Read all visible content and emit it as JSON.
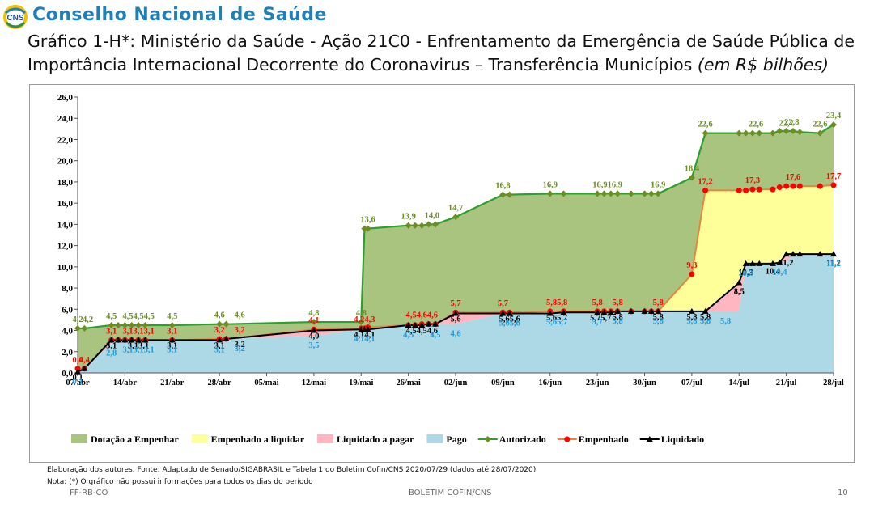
{
  "header": {
    "org_name": "Conselho Nacional de Saúde",
    "logo_text": "CNS",
    "title_main": "Gráfico 1-H*: Ministério da Saúde - Ação 21C0 - Enfrentamento da Emergência de Saúde Pública de Importância Internacional Decorrente do Coronavirus – Transferência Municípios",
    "title_unit": "(em R$ bilhões)"
  },
  "footer": {
    "source": "Elaboração dos autores. Fonte: Adaptado de Senado/SIGABRASIL e Tabela 1 do Boletim Cofin/CNS 2020/07/29  (dados até 28/07/2020)",
    "note": "Nota: (*) O gráfico não possui informações para todos os dias do período",
    "left": "FF-RB-CO",
    "center": "BOLETIM COFIN/CNS",
    "page": "10"
  },
  "chart_data": {
    "type": "area",
    "ylim": [
      0,
      26
    ],
    "yticks": [
      "0,0",
      "2,0",
      "4,0",
      "6,0",
      "8,0",
      "10,0",
      "12,0",
      "14,0",
      "16,0",
      "18,0",
      "20,0",
      "22,0",
      "24,0",
      "26,0"
    ],
    "xlim": [
      0,
      112
    ],
    "xticks": [
      {
        "label": "07/abr",
        "x": 0
      },
      {
        "label": "14/abr",
        "x": 7
      },
      {
        "label": "21/abr",
        "x": 14
      },
      {
        "label": "28/abr",
        "x": 21
      },
      {
        "label": "05/mai",
        "x": 28
      },
      {
        "label": "12/mai",
        "x": 35
      },
      {
        "label": "19/mai",
        "x": 42
      },
      {
        "label": "26/mai",
        "x": 49
      },
      {
        "label": "02/jun",
        "x": 56
      },
      {
        "label": "09/jun",
        "x": 63
      },
      {
        "label": "16/jun",
        "x": 70
      },
      {
        "label": "23/jun",
        "x": 77
      },
      {
        "label": "30/jun",
        "x": 84
      },
      {
        "label": "07/jul",
        "x": 91
      },
      {
        "label": "14/jul",
        "x": 98
      },
      {
        "label": "21/jul",
        "x": 105
      },
      {
        "label": "28/jul",
        "x": 112
      }
    ],
    "legend": [
      {
        "name": "Dotação a Empenhar",
        "kind": "area",
        "color": "#a9c47f"
      },
      {
        "name": "Empenhado a liquidar",
        "kind": "area",
        "color": "#ffff99"
      },
      {
        "name": "Liquidado a pagar",
        "kind": "area",
        "color": "#ffb6c1"
      },
      {
        "name": "Pago",
        "kind": "area",
        "color": "#add8e6"
      },
      {
        "name": "Autorizado",
        "kind": "line",
        "color": "#2ca02c",
        "marker": "diamond",
        "marker_color": "#6b8e23"
      },
      {
        "name": "Empenhado",
        "kind": "line",
        "color": "#e8853a",
        "marker": "circle",
        "marker_color": "#ff0000"
      },
      {
        "name": "Liquidado",
        "kind": "line",
        "color": "#000000",
        "marker": "triangle",
        "marker_color": "#000000"
      }
    ],
    "x": [
      0,
      1,
      5,
      6,
      7,
      8,
      9,
      10,
      14,
      21,
      22,
      35,
      42,
      42.5,
      43,
      49,
      50,
      51,
      52,
      53,
      56,
      63,
      64,
      70,
      72,
      77,
      78,
      79,
      80,
      82,
      84,
      85,
      86,
      91,
      93,
      98,
      99,
      100,
      101,
      103,
      104,
      105,
      106,
      107,
      110,
      112
    ],
    "series": [
      {
        "name": "Autorizado",
        "values": [
          4.2,
          4.2,
          4.5,
          4.5,
          4.5,
          4.5,
          4.5,
          4.5,
          4.5,
          4.6,
          4.6,
          4.8,
          4.8,
          13.6,
          13.6,
          13.9,
          13.9,
          13.9,
          14.0,
          14.0,
          14.7,
          16.8,
          16.8,
          16.9,
          16.9,
          16.9,
          16.9,
          16.9,
          16.9,
          16.9,
          16.9,
          16.9,
          16.9,
          18.4,
          22.6,
          22.6,
          22.6,
          22.6,
          22.6,
          22.6,
          22.8,
          22.8,
          22.8,
          22.7,
          22.6,
          23.4
        ]
      },
      {
        "name": "Empenhado",
        "values": [
          0.4,
          0.4,
          3.1,
          3.1,
          3.1,
          3.1,
          3.1,
          3.1,
          3.1,
          3.2,
          3.2,
          4.1,
          4.2,
          4.2,
          4.3,
          4.5,
          4.5,
          4.6,
          4.6,
          4.6,
          5.7,
          5.7,
          5.7,
          5.8,
          5.8,
          5.8,
          5.8,
          5.8,
          5.8,
          5.8,
          5.8,
          5.8,
          5.8,
          9.3,
          17.2,
          17.2,
          17.2,
          17.3,
          17.3,
          17.3,
          17.5,
          17.6,
          17.6,
          17.6,
          17.6,
          17.7
        ]
      },
      {
        "name": "Liquidado",
        "values": [
          0.1,
          0.4,
          3.1,
          3.1,
          3.1,
          3.1,
          3.1,
          3.1,
          3.1,
          3.1,
          3.2,
          4.0,
          4.1,
          4.1,
          4.1,
          4.5,
          4.5,
          4.5,
          4.6,
          4.6,
          5.6,
          5.6,
          5.6,
          5.6,
          5.7,
          5.7,
          5.7,
          5.7,
          5.8,
          5.8,
          5.8,
          5.8,
          5.8,
          5.8,
          5.8,
          8.5,
          10.3,
          10.3,
          10.3,
          10.3,
          10.4,
          11.2,
          11.2,
          11.2,
          11.2,
          11.2
        ]
      },
      {
        "name": "Pago",
        "values": [
          0.1,
          0.4,
          2.8,
          3.1,
          3.1,
          3.1,
          3.1,
          3.1,
          3.1,
          3.1,
          3.2,
          3.5,
          4.1,
          4.1,
          4.1,
          4.5,
          4.5,
          4.5,
          4.5,
          4.6,
          4.6,
          5.6,
          5.6,
          5.6,
          5.7,
          5.7,
          5.7,
          5.7,
          5.8,
          5.8,
          5.8,
          5.8,
          5.8,
          5.8,
          5.8,
          5.8,
          10.3,
          10.3,
          10.3,
          10.4,
          10.4,
          10.4,
          11.2,
          11.2,
          11.2,
          11.2
        ]
      }
    ],
    "data_labels": [
      {
        "series": "Autorizado",
        "text": "4,2",
        "x": 0,
        "y": 4.2
      },
      {
        "series": "Autorizado",
        "text": "4,2",
        "x": 1.5,
        "y": 4.2
      },
      {
        "series": "Autorizado",
        "text": "4,5",
        "x": 5,
        "y": 4.5
      },
      {
        "series": "Autorizado",
        "text": "4,54,54,5",
        "x": 9,
        "y": 4.5
      },
      {
        "series": "Autorizado",
        "text": "4,5",
        "x": 14,
        "y": 4.5
      },
      {
        "series": "Autorizado",
        "text": "4,6",
        "x": 21,
        "y": 4.6
      },
      {
        "series": "Autorizado",
        "text": "4,6",
        "x": 24,
        "y": 4.6
      },
      {
        "series": "Autorizado",
        "text": "4,8",
        "x": 35,
        "y": 4.8
      },
      {
        "series": "Autorizado",
        "text": "4,8",
        "x": 42,
        "y": 4.8
      },
      {
        "series": "Autorizado",
        "text": "13,6",
        "x": 43,
        "y": 13.6
      },
      {
        "series": "Autorizado",
        "text": "13,9",
        "x": 49,
        "y": 13.9
      },
      {
        "series": "Autorizado",
        "text": "14,0",
        "x": 52.5,
        "y": 14.0
      },
      {
        "series": "Autorizado",
        "text": "14,7",
        "x": 56,
        "y": 14.7
      },
      {
        "series": "Autorizado",
        "text": "16,8",
        "x": 63,
        "y": 16.8
      },
      {
        "series": "Autorizado",
        "text": "16,9",
        "x": 70,
        "y": 16.9
      },
      {
        "series": "Autorizado",
        "text": "16,916,9",
        "x": 78.5,
        "y": 16.9
      },
      {
        "series": "Autorizado",
        "text": "16,9",
        "x": 86,
        "y": 16.9
      },
      {
        "series": "Autorizado",
        "text": "18,4",
        "x": 91,
        "y": 18.4
      },
      {
        "series": "Autorizado",
        "text": "22,6",
        "x": 93,
        "y": 22.6
      },
      {
        "series": "Autorizado",
        "text": "22,6",
        "x": 100.5,
        "y": 22.6
      },
      {
        "series": "Autorizado",
        "text": "22,7",
        "x": 105,
        "y": 22.7
      },
      {
        "series": "Autorizado",
        "text": "22,8",
        "x": 105.8,
        "y": 22.8
      },
      {
        "series": "Autorizado",
        "text": "22,6",
        "x": 110,
        "y": 22.6
      },
      {
        "series": "Autorizado",
        "text": "23,4",
        "x": 112,
        "y": 23.4
      },
      {
        "series": "Empenhado",
        "text": "0,4",
        "x": 0,
        "y": 0.4
      },
      {
        "series": "Empenhado",
        "text": "0,4",
        "x": 1,
        "y": 0.4
      },
      {
        "series": "Empenhado",
        "text": "3,1",
        "x": 5,
        "y": 3.1
      },
      {
        "series": "Empenhado",
        "text": "3,13,13,1",
        "x": 9,
        "y": 3.1
      },
      {
        "series": "Empenhado",
        "text": "3,1",
        "x": 14,
        "y": 3.1
      },
      {
        "series": "Empenhado",
        "text": "3,2",
        "x": 21,
        "y": 3.2
      },
      {
        "series": "Empenhado",
        "text": "3,2",
        "x": 24,
        "y": 3.2
      },
      {
        "series": "Empenhado",
        "text": "4,1",
        "x": 35,
        "y": 4.1
      },
      {
        "series": "Empenhado",
        "text": "4,24,3",
        "x": 42.5,
        "y": 4.2
      },
      {
        "series": "Empenhado",
        "text": "4,54,64,6",
        "x": 51,
        "y": 4.6
      },
      {
        "series": "Empenhado",
        "text": "5,7",
        "x": 56,
        "y": 5.7
      },
      {
        "series": "Empenhado",
        "text": "5,7",
        "x": 63,
        "y": 5.7
      },
      {
        "series": "Empenhado",
        "text": "5,85,8",
        "x": 71,
        "y": 5.8
      },
      {
        "series": "Empenhado",
        "text": "5,8",
        "x": 77,
        "y": 5.8
      },
      {
        "series": "Empenhado",
        "text": "5,8",
        "x": 80,
        "y": 5.8
      },
      {
        "series": "Empenhado",
        "text": "5,8",
        "x": 86,
        "y": 5.8
      },
      {
        "series": "Empenhado",
        "text": "9,3",
        "x": 91,
        "y": 9.3
      },
      {
        "series": "Empenhado",
        "text": "17,2",
        "x": 93,
        "y": 17.2
      },
      {
        "series": "Empenhado",
        "text": "17,3",
        "x": 100,
        "y": 17.3
      },
      {
        "series": "Empenhado",
        "text": "17,6",
        "x": 106,
        "y": 17.6
      },
      {
        "series": "Empenhado",
        "text": "17,7",
        "x": 112,
        "y": 17.7
      },
      {
        "series": "Liquidado",
        "text": "0,1",
        "x": 0,
        "y": 0.1
      },
      {
        "series": "Liquidado",
        "text": "3,1",
        "x": 5,
        "y": 3.1
      },
      {
        "series": "Liquidado",
        "text": "3,13,1",
        "x": 9,
        "y": 3.1
      },
      {
        "series": "Liquidado",
        "text": "3,1",
        "x": 14,
        "y": 3.1
      },
      {
        "series": "Liquidado",
        "text": "3,1",
        "x": 21,
        "y": 3.1
      },
      {
        "series": "Liquidado",
        "text": "3,2",
        "x": 24,
        "y": 3.2
      },
      {
        "series": "Liquidado",
        "text": "4,0",
        "x": 35,
        "y": 4.0
      },
      {
        "series": "Liquidado",
        "text": "4,14,1",
        "x": 42.5,
        "y": 4.1
      },
      {
        "series": "Liquidado",
        "text": "4,54,54,6",
        "x": 51,
        "y": 4.5
      },
      {
        "series": "Liquidado",
        "text": "5,6",
        "x": 56,
        "y": 5.6
      },
      {
        "series": "Liquidado",
        "text": "5,65,6",
        "x": 64,
        "y": 5.6
      },
      {
        "series": "Liquidado",
        "text": "5,65,7",
        "x": 71,
        "y": 5.7
      },
      {
        "series": "Liquidado",
        "text": "5,75,7",
        "x": 77.5,
        "y": 5.7
      },
      {
        "series": "Liquidado",
        "text": "5,8",
        "x": 80,
        "y": 5.8
      },
      {
        "series": "Liquidado",
        "text": "5,8",
        "x": 86,
        "y": 5.8
      },
      {
        "series": "Liquidado",
        "text": "5,8",
        "x": 91,
        "y": 5.8
      },
      {
        "series": "Liquidado",
        "text": "5,8",
        "x": 93,
        "y": 5.8
      },
      {
        "series": "Liquidado",
        "text": "8,5",
        "x": 98,
        "y": 8.5
      },
      {
        "series": "Liquidado",
        "text": "10,3",
        "x": 99,
        "y": 10.3
      },
      {
        "series": "Liquidado",
        "text": "10,4",
        "x": 103,
        "y": 10.4
      },
      {
        "series": "Liquidado",
        "text": "11,2",
        "x": 105,
        "y": 11.2
      },
      {
        "series": "Liquidado",
        "text": "11,2",
        "x": 112,
        "y": 11.2
      },
      {
        "series": "Pago",
        "text": "0,1",
        "x": 0,
        "y": 0.1
      },
      {
        "series": "Pago",
        "text": "2,8",
        "x": 5,
        "y": 2.8
      },
      {
        "series": "Pago",
        "text": "3,13,13,1",
        "x": 9,
        "y": 3.1
      },
      {
        "series": "Pago",
        "text": "3,1",
        "x": 14,
        "y": 3.1
      },
      {
        "series": "Pago",
        "text": "3,1",
        "x": 21,
        "y": 3.1
      },
      {
        "series": "Pago",
        "text": "3,2",
        "x": 24,
        "y": 3.2
      },
      {
        "series": "Pago",
        "text": "3,5",
        "x": 35,
        "y": 3.5
      },
      {
        "series": "Pago",
        "text": "4,14,1",
        "x": 42.5,
        "y": 4.1
      },
      {
        "series": "Pago",
        "text": "4,5",
        "x": 49,
        "y": 4.5
      },
      {
        "series": "Pago",
        "text": "4,5",
        "x": 53,
        "y": 4.5
      },
      {
        "series": "Pago",
        "text": "4,6",
        "x": 56,
        "y": 4.6
      },
      {
        "series": "Pago",
        "text": "5,65,6",
        "x": 64,
        "y": 5.6
      },
      {
        "series": "Pago",
        "text": "5,65,7",
        "x": 71,
        "y": 5.7
      },
      {
        "series": "Pago",
        "text": "5,7",
        "x": 77,
        "y": 5.7
      },
      {
        "series": "Pago",
        "text": "5,8",
        "x": 80,
        "y": 5.8
      },
      {
        "series": "Pago",
        "text": "5,8",
        "x": 86,
        "y": 5.8
      },
      {
        "series": "Pago",
        "text": "5,8",
        "x": 91,
        "y": 5.8
      },
      {
        "series": "Pago",
        "text": "5,8",
        "x": 93,
        "y": 5.8
      },
      {
        "series": "Pago",
        "text": "5,8",
        "x": 96,
        "y": 5.8
      },
      {
        "series": "Pago",
        "text": "10,3",
        "x": 99,
        "y": 10.3
      },
      {
        "series": "Pago",
        "text": "10,4",
        "x": 104,
        "y": 10.4
      },
      {
        "series": "Pago",
        "text": "11,2",
        "x": 112,
        "y": 11.2
      }
    ]
  }
}
